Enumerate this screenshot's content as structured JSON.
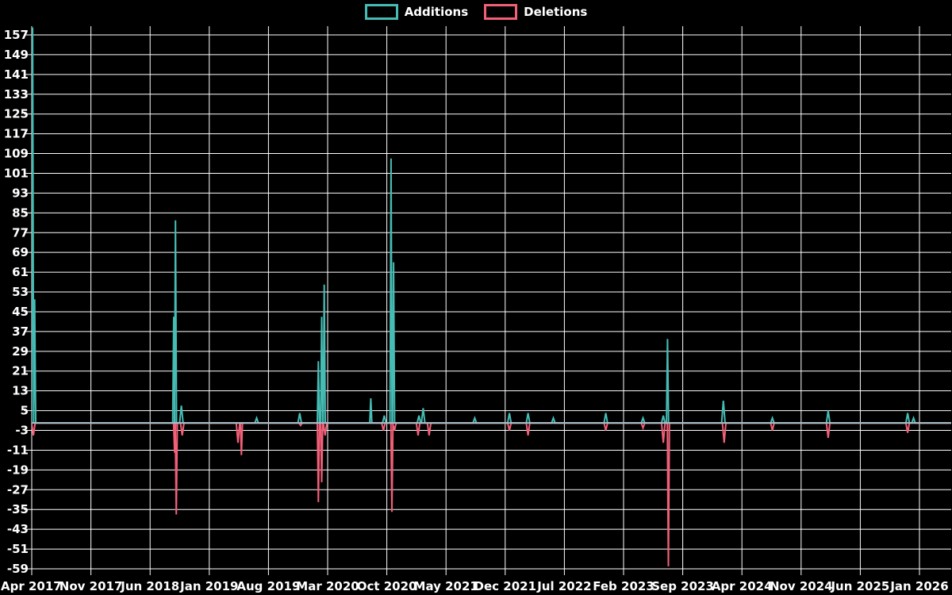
{
  "legend": {
    "position": "top-center",
    "items": [
      {
        "label": "Additions",
        "color": "#45bcb4"
      },
      {
        "label": "Deletions",
        "color": "#f25f78"
      }
    ]
  },
  "chart_data": {
    "type": "line",
    "title": "",
    "xlabel": "",
    "ylabel": "",
    "background_color": "#000000",
    "grid": true,
    "grid_color": "#ffffff",
    "text_color": "#ffffff",
    "zero_baseline_color": "#a7c0cb",
    "ylim": [
      -59,
      157
    ],
    "y_ticks": [
      157,
      149,
      141,
      133,
      125,
      117,
      109,
      101,
      93,
      85,
      77,
      69,
      61,
      53,
      45,
      37,
      29,
      21,
      13,
      5,
      -3,
      -11,
      -19,
      -27,
      -35,
      -43,
      -51,
      -59
    ],
    "x_tick_labels": [
      "Apr 2017",
      "Nov 2017",
      "Jun 2018",
      "Jan 2019",
      "Aug 2019",
      "Mar 2020",
      "Oct 2020",
      "May 2021",
      "Dec 2021",
      "Jul 2022",
      "Feb 2023",
      "Sep 2023",
      "Apr 2024",
      "Nov 2024",
      "Jun 2025",
      "Jan 2026"
    ],
    "x_tick_interval_months": 7,
    "x_axis_unit": "m = months after Apr 2017; value 0 between listed spike points",
    "notes": "Apr 2017 additions spike is clipped at the top of the plot (>157). Baseline sits at 0 with a pale blue-grey zero line.",
    "series": [
      {
        "name": "Additions",
        "color": "#45bcb4",
        "baseline": 0,
        "points": [
          [
            0.1,
            160
          ],
          [
            0.35,
            50
          ],
          [
            16.8,
            43
          ],
          [
            17.0,
            82
          ],
          [
            17.7,
            7
          ],
          [
            26.6,
            2
          ],
          [
            31.7,
            4
          ],
          [
            33.9,
            25
          ],
          [
            34.3,
            43
          ],
          [
            34.6,
            56
          ],
          [
            40.1,
            10
          ],
          [
            41.7,
            3
          ],
          [
            42.5,
            107
          ],
          [
            42.8,
            65
          ],
          [
            45.8,
            3
          ],
          [
            46.3,
            6
          ],
          [
            52.4,
            2
          ],
          [
            56.5,
            4
          ],
          [
            58.7,
            4
          ],
          [
            61.7,
            2
          ],
          [
            67.9,
            4
          ],
          [
            72.3,
            2
          ],
          [
            74.7,
            3
          ],
          [
            75.2,
            34
          ],
          [
            81.8,
            9
          ],
          [
            87.6,
            2
          ],
          [
            94.2,
            5
          ],
          [
            103.6,
            4
          ],
          [
            104.3,
            2
          ]
        ]
      },
      {
        "name": "Deletions",
        "color": "#f25f78",
        "baseline": 0,
        "points": [
          [
            0.2,
            -5
          ],
          [
            16.9,
            -12
          ],
          [
            17.1,
            -37
          ],
          [
            17.8,
            -5
          ],
          [
            24.4,
            -8
          ],
          [
            24.8,
            -13
          ],
          [
            31.8,
            -1
          ],
          [
            33.9,
            -32
          ],
          [
            34.3,
            -24
          ],
          [
            34.7,
            -5
          ],
          [
            41.6,
            -3
          ],
          [
            42.6,
            -36
          ],
          [
            42.9,
            -3
          ],
          [
            45.7,
            -5
          ],
          [
            47.0,
            -5
          ],
          [
            56.5,
            -3
          ],
          [
            58.7,
            -5
          ],
          [
            67.9,
            -3
          ],
          [
            72.3,
            -2
          ],
          [
            74.7,
            -8
          ],
          [
            75.3,
            -58
          ],
          [
            81.9,
            -8
          ],
          [
            87.6,
            -3
          ],
          [
            94.2,
            -6
          ],
          [
            103.6,
            -4
          ]
        ]
      }
    ]
  }
}
